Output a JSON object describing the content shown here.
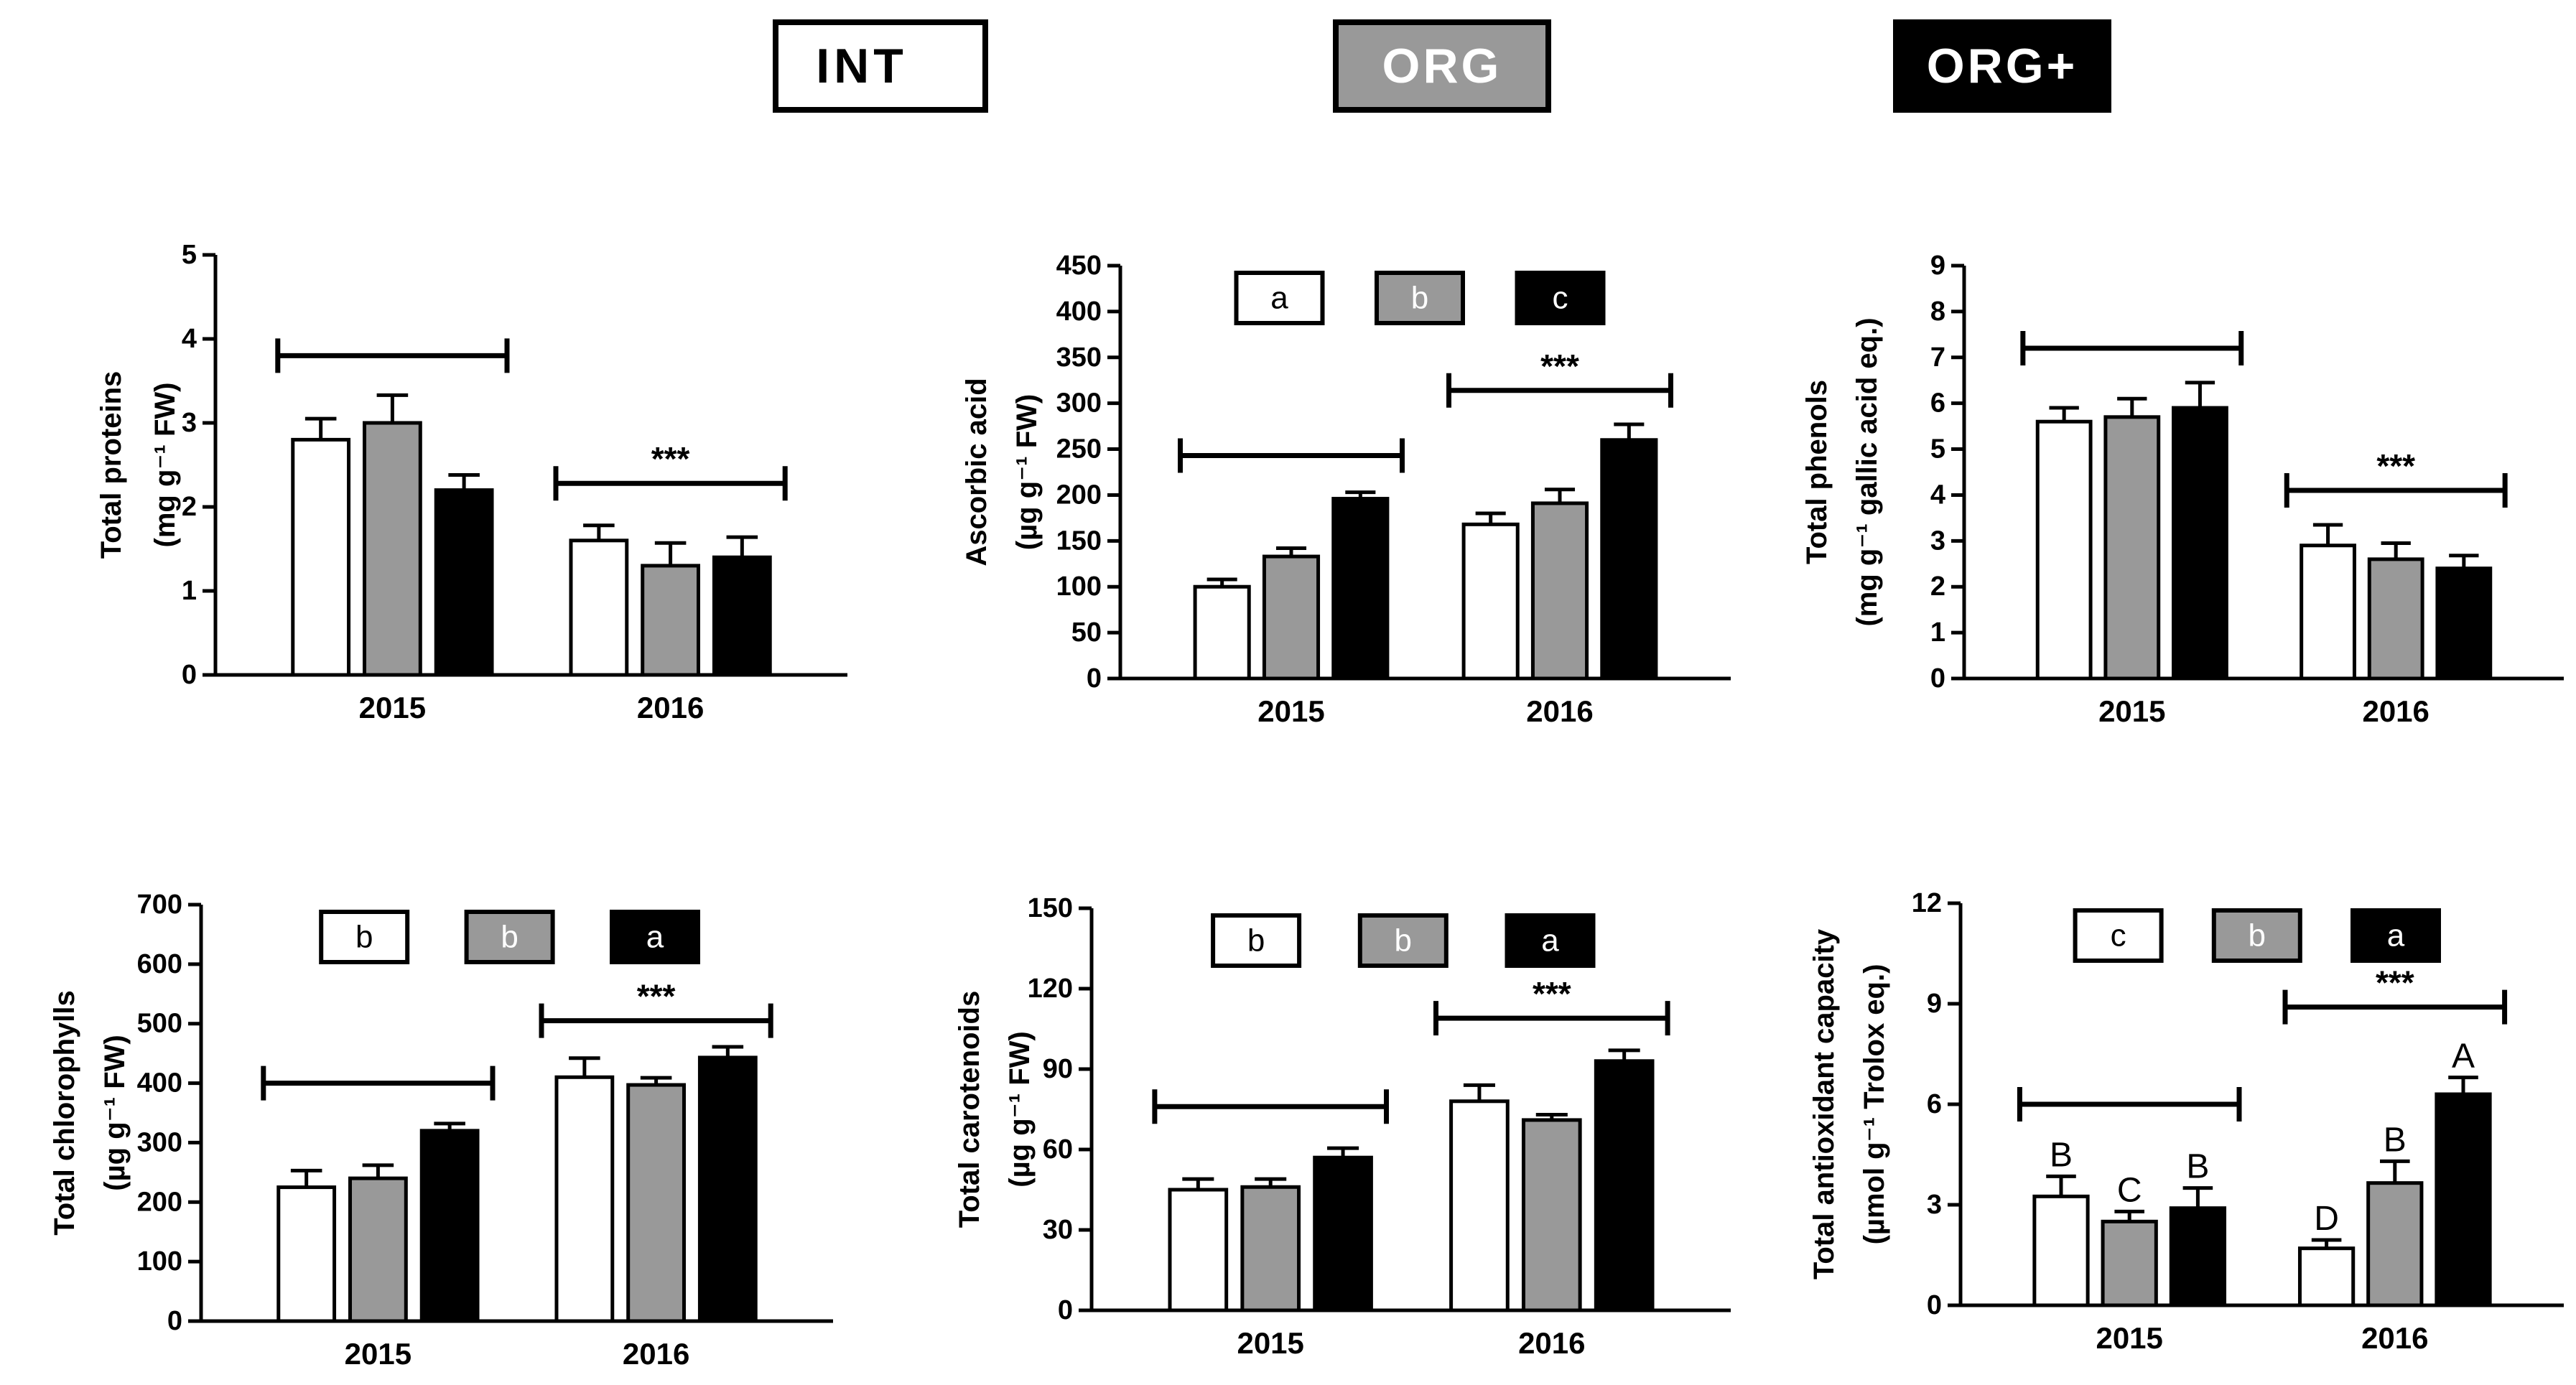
{
  "legend": [
    {
      "label": "INT",
      "fill": "#ffffff",
      "text_color": "#000000"
    },
    {
      "label": "ORG",
      "fill": "#999999",
      "text_color": "#ffffff"
    },
    {
      "label": "ORG+",
      "fill": "#000000",
      "text_color": "#ffffff"
    }
  ],
  "colors": {
    "INT": "#ffffff",
    "ORG": "#999999",
    "ORG+": "#000000",
    "axis": "#000000"
  },
  "chart_data": [
    {
      "id": "total-proteins",
      "type": "bar",
      "ylabel_line1": "Total proteins",
      "ylabel_line2": "(mg g⁻¹ FW)",
      "categories": [
        "2015",
        "2016"
      ],
      "ylim": [
        0,
        5
      ],
      "yticks": [
        0,
        1,
        2,
        3,
        4,
        5
      ],
      "ytick_labels": [
        "0",
        "1",
        "2",
        "3",
        "4",
        "5"
      ],
      "series": [
        {
          "name": "INT",
          "values": [
            2.8,
            1.6
          ],
          "errors": [
            0.25,
            0.18
          ]
        },
        {
          "name": "ORG",
          "values": [
            3.0,
            1.3
          ],
          "errors": [
            0.33,
            0.27
          ]
        },
        {
          "name": "ORG+",
          "values": [
            2.2,
            1.4
          ],
          "errors": [
            0.18,
            0.24
          ]
        }
      ],
      "brackets": [
        {
          "category": 0,
          "label": "",
          "y": 3.8
        },
        {
          "category": 1,
          "label": "***",
          "y": 2.28
        }
      ],
      "letter_boxes": [],
      "bar_letters": []
    },
    {
      "id": "ascorbic-acid",
      "type": "bar",
      "ylabel_line1": "Ascorbic acid",
      "ylabel_line2": "(µg g⁻¹ FW)",
      "categories": [
        "2015",
        "2016"
      ],
      "ylim": [
        0,
        450
      ],
      "yticks": [
        0,
        50,
        100,
        150,
        200,
        250,
        300,
        350,
        400,
        450
      ],
      "ytick_labels": [
        "0",
        "50",
        "100",
        "150",
        "200",
        "250",
        "300",
        "350",
        "400",
        "450"
      ],
      "series": [
        {
          "name": "INT",
          "values": [
            100,
            168
          ],
          "errors": [
            8,
            12
          ]
        },
        {
          "name": "ORG",
          "values": [
            133,
            191
          ],
          "errors": [
            9,
            15
          ]
        },
        {
          "name": "ORG+",
          "values": [
            196,
            260
          ],
          "errors": [
            7,
            17
          ]
        }
      ],
      "brackets": [
        {
          "category": 0,
          "label": "",
          "y": 243
        },
        {
          "category": 1,
          "label": "***",
          "y": 314
        }
      ],
      "letter_boxes": [
        "a",
        "b",
        "c"
      ],
      "bar_letters": []
    },
    {
      "id": "total-phenols",
      "type": "bar",
      "ylabel_line1": "Total phenols",
      "ylabel_line2": "(mg g⁻¹ gallic acid eq.)",
      "categories": [
        "2015",
        "2016"
      ],
      "ylim": [
        0,
        9
      ],
      "yticks": [
        0,
        1,
        2,
        3,
        4,
        5,
        6,
        7,
        8,
        9
      ],
      "ytick_labels": [
        "0",
        "1",
        "2",
        "3",
        "4",
        "5",
        "6",
        "7",
        "8",
        "9"
      ],
      "series": [
        {
          "name": "INT",
          "values": [
            5.6,
            2.9
          ],
          "errors": [
            0.3,
            0.45
          ]
        },
        {
          "name": "ORG",
          "values": [
            5.7,
            2.6
          ],
          "errors": [
            0.4,
            0.35
          ]
        },
        {
          "name": "ORG+",
          "values": [
            5.9,
            2.4
          ],
          "errors": [
            0.55,
            0.28
          ]
        }
      ],
      "brackets": [
        {
          "category": 0,
          "label": "",
          "y": 7.2
        },
        {
          "category": 1,
          "label": "***",
          "y": 4.1
        }
      ],
      "letter_boxes": [],
      "bar_letters": []
    },
    {
      "id": "total-chlorophylls",
      "type": "bar",
      "ylabel_line1": "Total chlorophylls",
      "ylabel_line2": "(µg g⁻¹ FW)",
      "categories": [
        "2015",
        "2016"
      ],
      "ylim": [
        0,
        700
      ],
      "yticks": [
        0,
        100,
        200,
        300,
        400,
        500,
        600,
        700
      ],
      "ytick_labels": [
        "0",
        "100",
        "200",
        "300",
        "400",
        "500",
        "600",
        "700"
      ],
      "series": [
        {
          "name": "INT",
          "values": [
            225,
            410
          ],
          "errors": [
            28,
            32
          ]
        },
        {
          "name": "ORG",
          "values": [
            240,
            397
          ],
          "errors": [
            22,
            12
          ]
        },
        {
          "name": "ORG+",
          "values": [
            320,
            443
          ],
          "errors": [
            12,
            18
          ]
        }
      ],
      "brackets": [
        {
          "category": 0,
          "label": "",
          "y": 400
        },
        {
          "category": 1,
          "label": "***",
          "y": 505
        }
      ],
      "letter_boxes": [
        "b",
        "b",
        "a"
      ],
      "bar_letters": []
    },
    {
      "id": "total-carotenoids",
      "type": "bar",
      "ylabel_line1": "Total carotenoids",
      "ylabel_line2": "(µg g⁻¹ FW)",
      "categories": [
        "2015",
        "2016"
      ],
      "ylim": [
        0,
        150
      ],
      "yticks": [
        0,
        30,
        60,
        90,
        120,
        150
      ],
      "ytick_labels": [
        "0",
        "30",
        "60",
        "90",
        "120",
        "150"
      ],
      "series": [
        {
          "name": "INT",
          "values": [
            45,
            78
          ],
          "errors": [
            4,
            6
          ]
        },
        {
          "name": "ORG",
          "values": [
            46,
            71
          ],
          "errors": [
            3,
            2
          ]
        },
        {
          "name": "ORG+",
          "values": [
            57,
            93
          ],
          "errors": [
            3.5,
            4
          ]
        }
      ],
      "brackets": [
        {
          "category": 0,
          "label": "",
          "y": 76
        },
        {
          "category": 1,
          "label": "***",
          "y": 109
        }
      ],
      "letter_boxes": [
        "b",
        "b",
        "a"
      ],
      "bar_letters": []
    },
    {
      "id": "total-antioxidant-capacity",
      "type": "bar",
      "ylabel_line1": "Total antioxidant capacity",
      "ylabel_line2": "(µmol g⁻¹ Trolox eq.)",
      "categories": [
        "2015",
        "2016"
      ],
      "ylim": [
        0,
        12
      ],
      "yticks": [
        0,
        3,
        6,
        9,
        12
      ],
      "ytick_labels": [
        "0",
        "3",
        "6",
        "9",
        "12"
      ],
      "series": [
        {
          "name": "INT",
          "values": [
            3.25,
            1.7
          ],
          "errors": [
            0.6,
            0.25
          ]
        },
        {
          "name": "ORG",
          "values": [
            2.5,
            3.65
          ],
          "errors": [
            0.3,
            0.65
          ]
        },
        {
          "name": "ORG+",
          "values": [
            2.9,
            6.3
          ],
          "errors": [
            0.6,
            0.5
          ]
        }
      ],
      "brackets": [
        {
          "category": 0,
          "label": "",
          "y": 6.0
        },
        {
          "category": 1,
          "label": "***",
          "y": 8.9
        }
      ],
      "letter_boxes": [
        "c",
        "b",
        "a"
      ],
      "bar_letters": [
        [
          "B",
          "C",
          "B"
        ],
        [
          "D",
          "B",
          "A"
        ]
      ]
    }
  ]
}
